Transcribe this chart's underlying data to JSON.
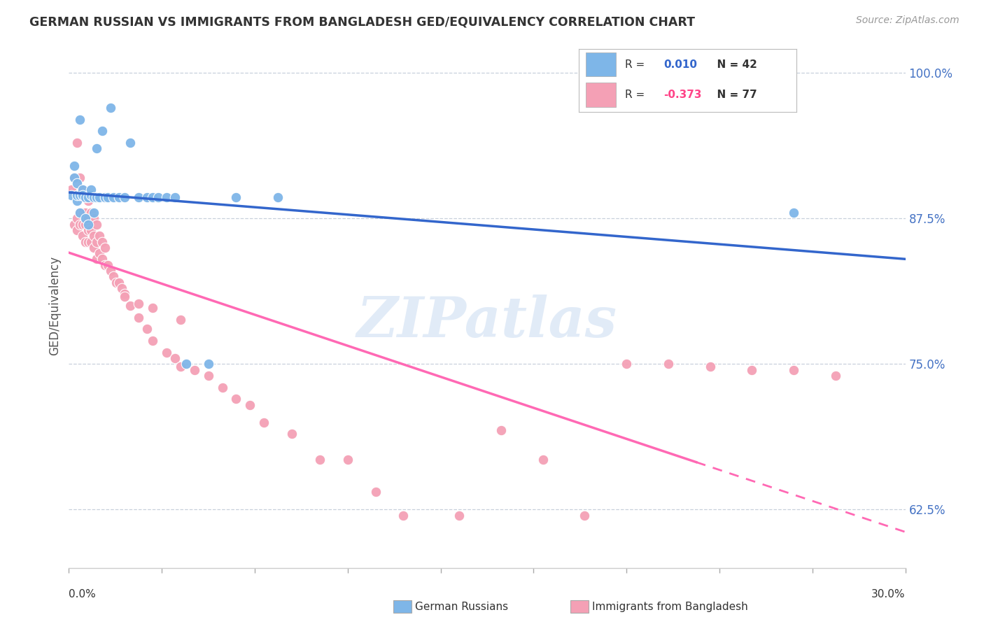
{
  "title": "GERMAN RUSSIAN VS IMMIGRANTS FROM BANGLADESH GED/EQUIVALENCY CORRELATION CHART",
  "source": "Source: ZipAtlas.com",
  "ylabel": "GED/Equivalency",
  "xlim": [
    0.0,
    0.3
  ],
  "ylim": [
    0.575,
    1.025
  ],
  "yticks": [
    0.625,
    0.75,
    0.875,
    1.0
  ],
  "ytick_labels": [
    "62.5%",
    "75.0%",
    "87.5%",
    "100.0%"
  ],
  "blue_R": 0.01,
  "blue_N": 42,
  "pink_R": -0.373,
  "pink_N": 77,
  "blue_color": "#7EB6E8",
  "pink_color": "#F4A0B5",
  "blue_line_color": "#3366CC",
  "pink_line_color": "#FF69B4",
  "legend_label_blue": "German Russians",
  "legend_label_pink": "Immigrants from Bangladesh",
  "watermark": "ZIPatlas",
  "background_color": "#FFFFFF",
  "blue_x": [
    0.001,
    0.002,
    0.002,
    0.003,
    0.003,
    0.003,
    0.004,
    0.004,
    0.004,
    0.005,
    0.005,
    0.005,
    0.006,
    0.006,
    0.007,
    0.007,
    0.008,
    0.008,
    0.009,
    0.009,
    0.01,
    0.01,
    0.011,
    0.012,
    0.013,
    0.014,
    0.015,
    0.016,
    0.018,
    0.02,
    0.022,
    0.025,
    0.028,
    0.03,
    0.032,
    0.035,
    0.038,
    0.042,
    0.05,
    0.06,
    0.075,
    0.26
  ],
  "blue_y": [
    0.895,
    0.91,
    0.92,
    0.89,
    0.895,
    0.905,
    0.88,
    0.895,
    0.96,
    0.895,
    0.9,
    0.895,
    0.875,
    0.893,
    0.87,
    0.893,
    0.895,
    0.9,
    0.88,
    0.893,
    0.935,
    0.893,
    0.893,
    0.95,
    0.893,
    0.893,
    0.97,
    0.893,
    0.893,
    0.893,
    0.94,
    0.893,
    0.893,
    0.893,
    0.893,
    0.893,
    0.893,
    0.75,
    0.75,
    0.893,
    0.893,
    0.88
  ],
  "pink_x": [
    0.001,
    0.002,
    0.002,
    0.003,
    0.003,
    0.003,
    0.003,
    0.004,
    0.004,
    0.004,
    0.004,
    0.005,
    0.005,
    0.005,
    0.005,
    0.006,
    0.006,
    0.006,
    0.006,
    0.007,
    0.007,
    0.007,
    0.007,
    0.008,
    0.008,
    0.008,
    0.009,
    0.009,
    0.009,
    0.01,
    0.01,
    0.01,
    0.011,
    0.011,
    0.012,
    0.012,
    0.013,
    0.013,
    0.014,
    0.015,
    0.016,
    0.017,
    0.018,
    0.019,
    0.02,
    0.022,
    0.025,
    0.028,
    0.03,
    0.035,
    0.038,
    0.04,
    0.045,
    0.05,
    0.055,
    0.06,
    0.065,
    0.07,
    0.08,
    0.09,
    0.1,
    0.11,
    0.12,
    0.14,
    0.155,
    0.17,
    0.185,
    0.2,
    0.215,
    0.23,
    0.245,
    0.26,
    0.275,
    0.02,
    0.025,
    0.03,
    0.04
  ],
  "pink_y": [
    0.9,
    0.87,
    0.91,
    0.865,
    0.875,
    0.895,
    0.94,
    0.87,
    0.88,
    0.895,
    0.91,
    0.86,
    0.87,
    0.88,
    0.9,
    0.855,
    0.87,
    0.88,
    0.895,
    0.855,
    0.865,
    0.875,
    0.89,
    0.855,
    0.865,
    0.88,
    0.85,
    0.86,
    0.875,
    0.84,
    0.855,
    0.87,
    0.845,
    0.86,
    0.84,
    0.855,
    0.835,
    0.85,
    0.835,
    0.83,
    0.825,
    0.82,
    0.82,
    0.815,
    0.81,
    0.8,
    0.79,
    0.78,
    0.77,
    0.76,
    0.755,
    0.748,
    0.745,
    0.74,
    0.73,
    0.72,
    0.715,
    0.7,
    0.69,
    0.668,
    0.668,
    0.64,
    0.62,
    0.62,
    0.693,
    0.668,
    0.62,
    0.75,
    0.75,
    0.748,
    0.745,
    0.745,
    0.74,
    0.808,
    0.802,
    0.798,
    0.788
  ]
}
